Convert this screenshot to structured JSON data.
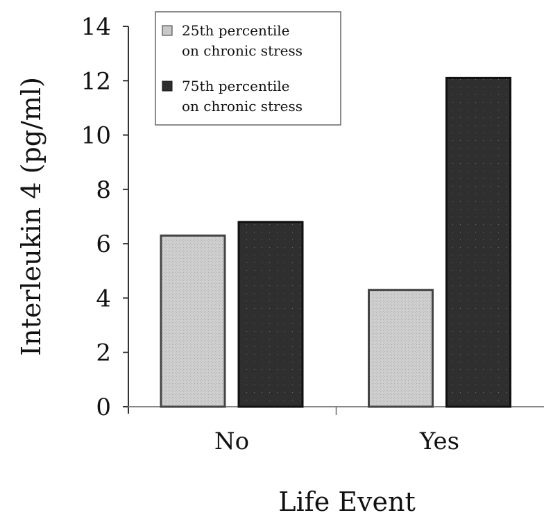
{
  "chart_data": {
    "type": "bar",
    "title": "",
    "xlabel": "Life Event",
    "ylabel": "Interleukin 4 (pg/ml)",
    "categories": [
      "No",
      "Yes"
    ],
    "ylim": [
      0,
      14
    ],
    "yticks": [
      0,
      2,
      4,
      6,
      8,
      10,
      12,
      14
    ],
    "grid": false,
    "legend": "top-left",
    "series": [
      {
        "name_lines": [
          "25th percentile",
          "on chronic stress"
        ],
        "values": [
          6.3,
          4.3
        ],
        "color": "#c8c8c8"
      },
      {
        "name_lines": [
          "75th percentile",
          "on chronic stress"
        ],
        "values": [
          6.8,
          12.1
        ],
        "color": "#2e2e2e"
      }
    ]
  }
}
